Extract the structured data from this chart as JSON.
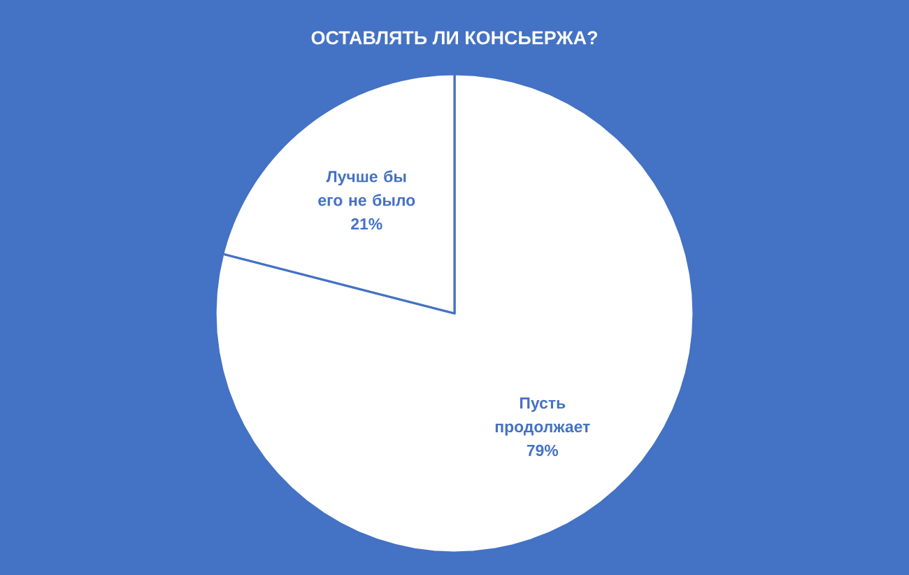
{
  "chart_data": {
    "type": "pie",
    "title": "ОСТАВЛЯТЬ ЛИ КОНСЬЕРЖА?",
    "categories": [
      "Пусть продолжает",
      "Лучше бы его не было"
    ],
    "values": [
      79,
      21
    ],
    "colors": [
      "#ffffff",
      "#ffffff"
    ],
    "value_labels": [
      "79%",
      "21%"
    ],
    "legend": false
  }
}
